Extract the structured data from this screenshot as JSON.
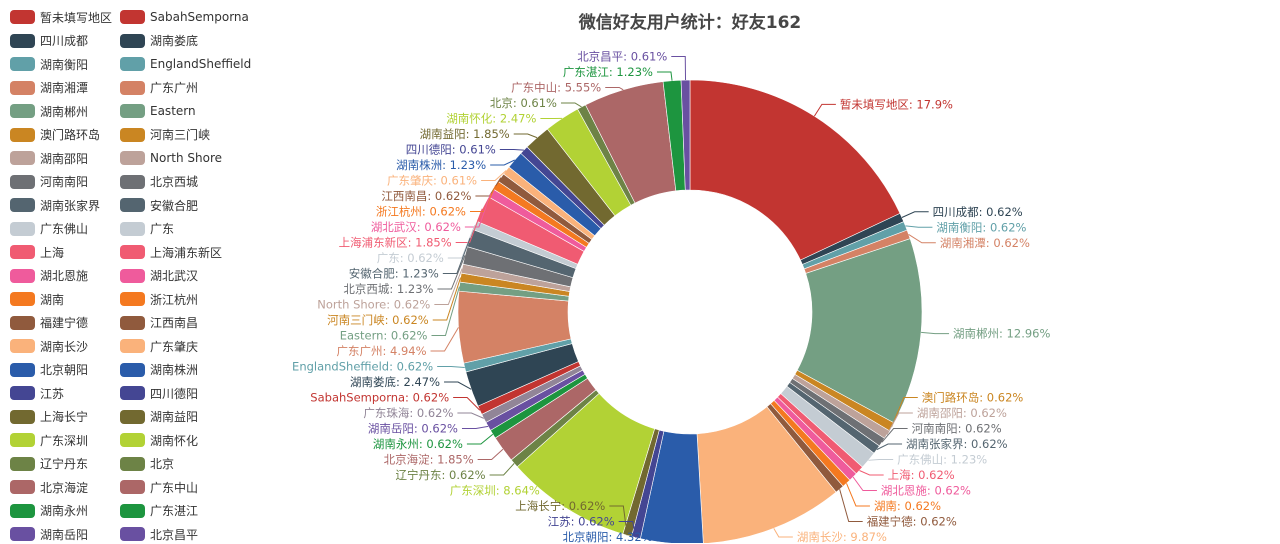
{
  "chart_data": {
    "type": "pie",
    "variant": "donut",
    "title": "微信好友用户统计：好友162",
    "legend_position": "left",
    "legend": [
      {
        "name": "暂未填写地区",
        "color": "#c23531"
      },
      {
        "name": "SabahSemporna",
        "color": "#c23531"
      },
      {
        "name": "四川成都",
        "color": "#2f4554"
      },
      {
        "name": "湖南娄底",
        "color": "#2f4554"
      },
      {
        "name": "湖南衡阳",
        "color": "#61a0a8"
      },
      {
        "name": "EnglandSheffield",
        "color": "#61a0a8"
      },
      {
        "name": "湖南湘潭",
        "color": "#d48265"
      },
      {
        "name": "广东广州",
        "color": "#d48265"
      },
      {
        "name": "湖南郴州",
        "color": "#749f83"
      },
      {
        "name": "Eastern",
        "color": "#749f83"
      },
      {
        "name": "澳门路环岛",
        "color": "#ca8622"
      },
      {
        "name": "河南三门峡",
        "color": "#ca8622"
      },
      {
        "name": "湖南邵阳",
        "color": "#bda29a"
      },
      {
        "name": "North Shore",
        "color": "#bda29a"
      },
      {
        "name": "河南南阳",
        "color": "#6e7074"
      },
      {
        "name": "北京西城",
        "color": "#6e7074"
      },
      {
        "name": "湖南张家界",
        "color": "#546570"
      },
      {
        "name": "安徽合肥",
        "color": "#546570"
      },
      {
        "name": "广东佛山",
        "color": "#c4ccd3"
      },
      {
        "name": "广东",
        "color": "#c4ccd3"
      },
      {
        "name": "上海",
        "color": "#f05b72"
      },
      {
        "name": "上海浦东新区",
        "color": "#f05b72"
      },
      {
        "name": "湖北恩施",
        "color": "#ef5b9c"
      },
      {
        "name": "湖北武汉",
        "color": "#ef5b9c"
      },
      {
        "name": "湖南",
        "color": "#f47920"
      },
      {
        "name": "浙江杭州",
        "color": "#f47920"
      },
      {
        "name": "福建宁德",
        "color": "#905a3d"
      },
      {
        "name": "江西南昌",
        "color": "#905a3d"
      },
      {
        "name": "湖南长沙",
        "color": "#fab27b"
      },
      {
        "name": "广东肇庆",
        "color": "#fab27b"
      },
      {
        "name": "北京朝阳",
        "color": "#2a5caa"
      },
      {
        "name": "湖南株洲",
        "color": "#2a5caa"
      },
      {
        "name": "江苏",
        "color": "#444693"
      },
      {
        "name": "四川德阳",
        "color": "#444693"
      },
      {
        "name": "上海长宁",
        "color": "#726930"
      },
      {
        "name": "湖南益阳",
        "color": "#726930"
      },
      {
        "name": "广东深圳",
        "color": "#b2d235"
      },
      {
        "name": "湖南怀化",
        "color": "#b2d235"
      },
      {
        "name": "辽宁丹东",
        "color": "#6d8346"
      },
      {
        "name": "北京",
        "color": "#6d8346"
      },
      {
        "name": "北京海淀",
        "color": "#ac6767"
      },
      {
        "name": "广东中山",
        "color": "#ac6767"
      },
      {
        "name": "湖南永州",
        "color": "#1d953f"
      },
      {
        "name": "广东湛江",
        "color": "#1d953f"
      },
      {
        "name": "湖南岳阳",
        "color": "#6950a1"
      },
      {
        "name": "北京昌平",
        "color": "#6950a1"
      }
    ],
    "slices": [
      {
        "name": "暂未填写地区",
        "value": 17.9,
        "label": "暂未填写地区: 17.9%",
        "color": "#c23531"
      },
      {
        "name": "四川成都",
        "value": 0.62,
        "label": "四川成都: 0.62%",
        "color": "#2f4554"
      },
      {
        "name": "湖南衡阳",
        "value": 0.62,
        "label": "湖南衡阳: 0.62%",
        "color": "#61a0a8"
      },
      {
        "name": "湖南湘潭",
        "value": 0.62,
        "label": "湖南湘潭: 0.62%",
        "color": "#d48265"
      },
      {
        "name": "湖南郴州",
        "value": 12.96,
        "label": "湖南郴州: 12.96%",
        "color": "#749f83"
      },
      {
        "name": "澳门路环岛",
        "value": 0.62,
        "label": "澳门路环岛: 0.62%",
        "color": "#ca8622"
      },
      {
        "name": "湖南邵阳",
        "value": 0.62,
        "label": "湖南邵阳: 0.62%",
        "color": "#bda29a"
      },
      {
        "name": "河南南阳",
        "value": 0.62,
        "label": "河南南阳: 0.62%",
        "color": "#6e7074"
      },
      {
        "name": "湖南张家界",
        "value": 0.62,
        "label": "湖南张家界: 0.62%",
        "color": "#546570"
      },
      {
        "name": "广东佛山",
        "value": 1.23,
        "label": "广东佛山: 1.23%",
        "color": "#c4ccd3"
      },
      {
        "name": "上海",
        "value": 0.62,
        "label": "上海: 0.62%",
        "color": "#f05b72"
      },
      {
        "name": "湖北恩施",
        "value": 0.62,
        "label": "湖北恩施: 0.62%",
        "color": "#ef5b9c"
      },
      {
        "name": "湖南",
        "value": 0.62,
        "label": "湖南: 0.62%",
        "color": "#f47920"
      },
      {
        "name": "福建宁德",
        "value": 0.62,
        "label": "福建宁德: 0.62%",
        "color": "#905a3d"
      },
      {
        "name": "湖南长沙",
        "value": 9.87,
        "label": "湖南长沙: 9.87%",
        "color": "#fab27b"
      },
      {
        "name": "北京朝阳",
        "value": 4.32,
        "label": "北京朝阳: 4.32%",
        "color": "#2a5caa"
      },
      {
        "name": "江苏",
        "value": 0.62,
        "label": "江苏: 0.62%",
        "color": "#444693"
      },
      {
        "name": "上海长宁",
        "value": 0.62,
        "label": "上海长宁: 0.62%",
        "color": "#726930"
      },
      {
        "name": "广东深圳",
        "value": 8.64,
        "label": "广东深圳: 8.64%",
        "color": "#b2d235"
      },
      {
        "name": "辽宁丹东",
        "value": 0.62,
        "label": "辽宁丹东: 0.62%",
        "color": "#6d8346"
      },
      {
        "name": "北京海淀",
        "value": 1.85,
        "label": "北京海淀: 1.85%",
        "color": "#ac6767"
      },
      {
        "name": "湖南永州",
        "value": 0.62,
        "label": "湖南永州: 0.62%",
        "color": "#1d953f"
      },
      {
        "name": "湖南岳阳",
        "value": 0.62,
        "label": "湖南岳阳: 0.62%",
        "color": "#6950a1"
      },
      {
        "name": "广东珠海",
        "value": 0.62,
        "label": "广东珠海: 0.62%",
        "color": "#918597"
      },
      {
        "name": "SabahSemporna",
        "value": 0.62,
        "label": "SabahSemporna: 0.62%",
        "color": "#c23531"
      },
      {
        "name": "湖南娄底",
        "value": 2.47,
        "label": "湖南娄底: 2.47%",
        "color": "#2f4554"
      },
      {
        "name": "EnglandSheffield",
        "value": 0.62,
        "label": "EnglandSheffield: 0.62%",
        "color": "#61a0a8"
      },
      {
        "name": "广东广州",
        "value": 4.94,
        "label": "广东广州: 4.94%",
        "color": "#d48265"
      },
      {
        "name": "Eastern",
        "value": 0.62,
        "label": "Eastern: 0.62%",
        "color": "#749f83"
      },
      {
        "name": "河南三门峡",
        "value": 0.62,
        "label": "河南三门峡: 0.62%",
        "color": "#ca8622"
      },
      {
        "name": "North Shore",
        "value": 0.62,
        "label": "North Shore: 0.62%",
        "color": "#bda29a"
      },
      {
        "name": "北京西城",
        "value": 1.23,
        "label": "北京西城: 1.23%",
        "color": "#6e7074"
      },
      {
        "name": "安徽合肥",
        "value": 1.23,
        "label": "安徽合肥: 1.23%",
        "color": "#546570"
      },
      {
        "name": "广东",
        "value": 0.62,
        "label": "广东: 0.62%",
        "color": "#c4ccd3"
      },
      {
        "name": "上海浦东新区",
        "value": 1.85,
        "label": "上海浦东新区: 1.85%",
        "color": "#f05b72"
      },
      {
        "name": "湖北武汉",
        "value": 0.62,
        "label": "湖北武汉: 0.62%",
        "color": "#ef5b9c"
      },
      {
        "name": "浙江杭州",
        "value": 0.62,
        "label": "浙江杭州: 0.62%",
        "color": "#f47920"
      },
      {
        "name": "江西南昌",
        "value": 0.62,
        "label": "江西南昌: 0.62%",
        "color": "#905a3d"
      },
      {
        "name": "广东肇庆",
        "value": 0.61,
        "label": "广东肇庆: 0.61%",
        "color": "#fab27b"
      },
      {
        "name": "湖南株洲",
        "value": 1.23,
        "label": "湖南株洲: 1.23%",
        "color": "#2a5caa"
      },
      {
        "name": "四川德阳",
        "value": 0.61,
        "label": "四川德阳: 0.61%",
        "color": "#444693"
      },
      {
        "name": "湖南益阳",
        "value": 1.85,
        "label": "湖南益阳: 1.85%",
        "color": "#726930"
      },
      {
        "name": "湖南怀化",
        "value": 2.47,
        "label": "湖南怀化: 2.47%",
        "color": "#b2d235"
      },
      {
        "name": "北京",
        "value": 0.61,
        "label": "北京: 0.61%",
        "color": "#6d8346"
      },
      {
        "name": "广东中山",
        "value": 5.55,
        "label": "广东中山: 5.55%",
        "color": "#ac6767"
      },
      {
        "name": "广东湛江",
        "value": 1.23,
        "label": "广东湛江: 1.23%",
        "color": "#1d953f"
      },
      {
        "name": "北京昌平",
        "value": 0.61,
        "label": "北京昌平: 0.61%",
        "color": "#6950a1"
      }
    ]
  }
}
